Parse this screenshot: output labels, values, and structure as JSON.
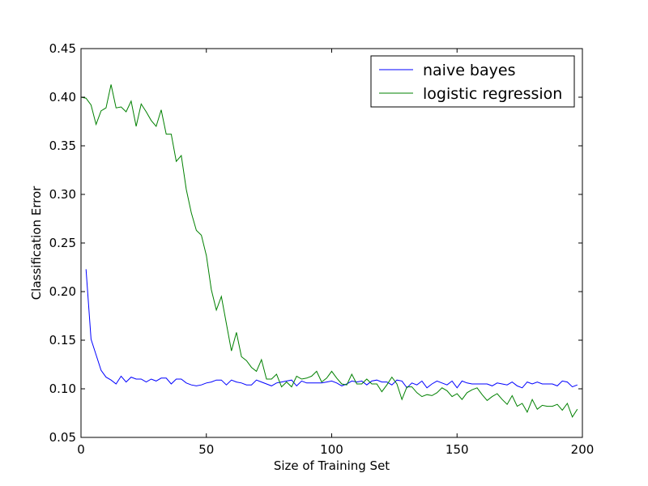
{
  "chart_data": {
    "type": "line",
    "xlabel": "Size of Training Set",
    "ylabel": "Classification Error",
    "xlim": [
      0,
      200
    ],
    "ylim": [
      0.05,
      0.45
    ],
    "xticks": [
      0,
      50,
      100,
      150,
      200
    ],
    "xtick_labels": [
      "0",
      "50",
      "100",
      "150",
      "200"
    ],
    "yticks": [
      0.05,
      0.1,
      0.15,
      0.2,
      0.25,
      0.3,
      0.35,
      0.4,
      0.45
    ],
    "ytick_labels": [
      "0.05",
      "0.10",
      "0.15",
      "0.20",
      "0.25",
      "0.30",
      "0.35",
      "0.40",
      "0.45"
    ],
    "grid": false,
    "legend_position": "top-right",
    "series": [
      {
        "name": "naive bayes",
        "color": "#0000ff",
        "x": [
          2,
          4,
          6,
          8,
          10,
          12,
          14,
          16,
          18,
          20,
          22,
          24,
          26,
          28,
          30,
          32,
          34,
          36,
          38,
          40,
          42,
          44,
          46,
          48,
          50,
          52,
          54,
          56,
          58,
          60,
          62,
          64,
          66,
          68,
          70,
          72,
          74,
          76,
          78,
          80,
          82,
          84,
          86,
          88,
          90,
          92,
          94,
          96,
          98,
          100,
          102,
          104,
          106,
          108,
          110,
          112,
          114,
          116,
          118,
          120,
          122,
          124,
          126,
          128,
          130,
          132,
          134,
          136,
          138,
          140,
          142,
          144,
          146,
          148,
          150,
          152,
          154,
          156,
          158,
          160,
          162,
          164,
          166,
          168,
          170,
          172,
          174,
          176,
          178,
          180,
          182,
          184,
          186,
          188,
          190,
          192,
          194,
          196,
          198
        ],
        "y": [
          0.223,
          0.151,
          0.135,
          0.119,
          0.112,
          0.109,
          0.105,
          0.113,
          0.107,
          0.112,
          0.11,
          0.11,
          0.107,
          0.11,
          0.108,
          0.111,
          0.111,
          0.105,
          0.11,
          0.11,
          0.106,
          0.104,
          0.103,
          0.104,
          0.106,
          0.107,
          0.109,
          0.109,
          0.104,
          0.109,
          0.107,
          0.106,
          0.104,
          0.104,
          0.109,
          0.107,
          0.105,
          0.103,
          0.106,
          0.107,
          0.108,
          0.109,
          0.103,
          0.108,
          0.106,
          0.106,
          0.106,
          0.106,
          0.107,
          0.108,
          0.106,
          0.103,
          0.105,
          0.108,
          0.107,
          0.108,
          0.104,
          0.108,
          0.109,
          0.107,
          0.107,
          0.104,
          0.109,
          0.108,
          0.101,
          0.106,
          0.104,
          0.108,
          0.101,
          0.105,
          0.108,
          0.106,
          0.104,
          0.108,
          0.101,
          0.108,
          0.106,
          0.105,
          0.105,
          0.105,
          0.105,
          0.103,
          0.106,
          0.105,
          0.104,
          0.107,
          0.103,
          0.101,
          0.107,
          0.105,
          0.107,
          0.105,
          0.105,
          0.105,
          0.103,
          0.108,
          0.107,
          0.102,
          0.104
        ]
      },
      {
        "name": "logistic regression",
        "color": "#008000",
        "x": [
          0,
          2,
          4,
          6,
          8,
          10,
          12,
          14,
          16,
          18,
          20,
          22,
          24,
          26,
          28,
          30,
          32,
          34,
          36,
          38,
          40,
          42,
          44,
          46,
          48,
          50,
          52,
          54,
          56,
          58,
          60,
          62,
          64,
          66,
          68,
          70,
          72,
          74,
          76,
          78,
          80,
          82,
          84,
          86,
          88,
          90,
          92,
          94,
          96,
          98,
          100,
          102,
          104,
          106,
          108,
          110,
          112,
          114,
          116,
          118,
          120,
          122,
          124,
          126,
          128,
          130,
          132,
          134,
          136,
          138,
          140,
          142,
          144,
          146,
          148,
          150,
          152,
          154,
          156,
          158,
          160,
          162,
          164,
          166,
          168,
          170,
          172,
          174,
          176,
          178,
          180,
          182,
          184,
          186,
          188,
          190,
          192,
          194,
          196,
          198
        ],
        "y": [
          0.4,
          0.399,
          0.392,
          0.372,
          0.386,
          0.389,
          0.413,
          0.389,
          0.39,
          0.385,
          0.396,
          0.37,
          0.393,
          0.385,
          0.376,
          0.37,
          0.387,
          0.362,
          0.362,
          0.334,
          0.34,
          0.305,
          0.281,
          0.263,
          0.258,
          0.237,
          0.202,
          0.181,
          0.195,
          0.167,
          0.139,
          0.158,
          0.133,
          0.129,
          0.122,
          0.118,
          0.13,
          0.11,
          0.11,
          0.115,
          0.102,
          0.107,
          0.102,
          0.113,
          0.11,
          0.111,
          0.113,
          0.118,
          0.107,
          0.111,
          0.118,
          0.111,
          0.105,
          0.104,
          0.115,
          0.105,
          0.105,
          0.11,
          0.105,
          0.105,
          0.097,
          0.104,
          0.112,
          0.105,
          0.089,
          0.102,
          0.102,
          0.096,
          0.092,
          0.094,
          0.093,
          0.096,
          0.101,
          0.098,
          0.092,
          0.095,
          0.089,
          0.096,
          0.099,
          0.101,
          0.094,
          0.088,
          0.092,
          0.095,
          0.089,
          0.084,
          0.093,
          0.082,
          0.085,
          0.076,
          0.089,
          0.079,
          0.083,
          0.082,
          0.082,
          0.084,
          0.078,
          0.085,
          0.071,
          0.079
        ]
      }
    ]
  }
}
